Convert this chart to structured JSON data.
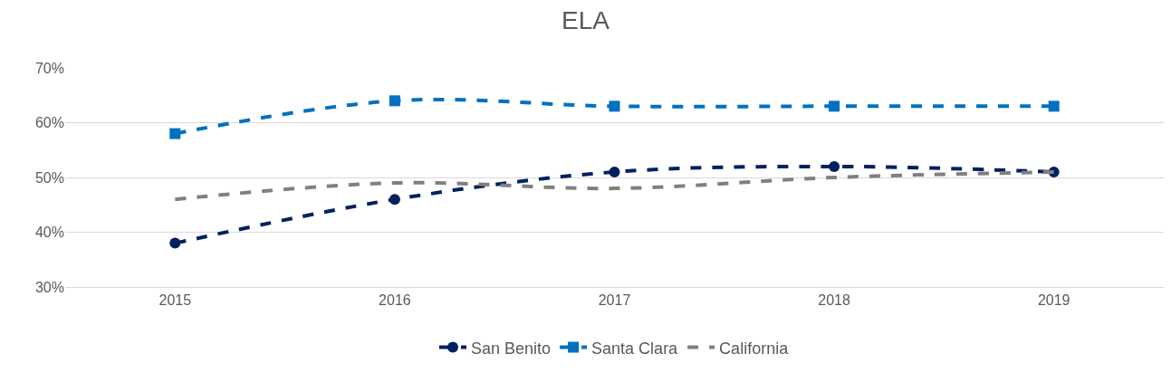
{
  "chart_data": {
    "type": "line",
    "title": "ELA",
    "categories": [
      "2015",
      "2016",
      "2017",
      "2018",
      "2019"
    ],
    "series": [
      {
        "name": "San Benito",
        "color": "#002060",
        "marker": "circle",
        "values": [
          38,
          46,
          51,
          52,
          51
        ]
      },
      {
        "name": "Santa Clara",
        "color": "#0070c0",
        "marker": "square",
        "values": [
          58,
          64,
          63,
          63,
          63
        ]
      },
      {
        "name": "California",
        "color": "#808080",
        "marker": "none",
        "values": [
          46,
          49,
          48,
          50,
          51
        ]
      }
    ],
    "ylim": [
      30,
      70
    ],
    "yticks": [
      {
        "value": 30,
        "label": "30%"
      },
      {
        "value": 40,
        "label": "40%"
      },
      {
        "value": 50,
        "label": "50%"
      },
      {
        "value": 60,
        "label": "60%"
      },
      {
        "value": 70,
        "label": "70%"
      }
    ],
    "grid": "y",
    "legend": "bottom",
    "line_style": "dashed"
  }
}
